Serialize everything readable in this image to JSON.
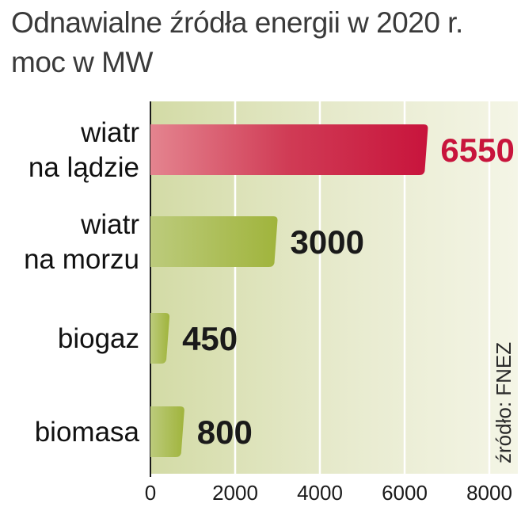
{
  "chart_data": {
    "type": "bar",
    "orientation": "horizontal",
    "title": "Odnawialne źródła energii w 2020 r.",
    "subtitle": "moc w MW",
    "categories": [
      [
        "wiatr",
        "na lądzie"
      ],
      [
        "wiatr",
        "na morzu"
      ],
      [
        "biogaz"
      ],
      [
        "biomasa"
      ]
    ],
    "values": [
      6550,
      3000,
      450,
      800
    ],
    "value_labels": [
      "6550",
      "3000",
      "450",
      "800"
    ],
    "xlim": [
      0,
      8000
    ],
    "xticks": [
      0,
      2000,
      4000,
      6000,
      8000
    ],
    "xtick_labels": [
      "0",
      "2000",
      "4000",
      "6000",
      "8000"
    ],
    "grid": true,
    "source": "źródło: FNEZ",
    "colors": {
      "highlight_bar": "#c8143c",
      "highlight_value": "#c8143c",
      "bar": "#a0b43c",
      "value": "#1a1a1a",
      "background": "#e6e9c8",
      "grid": "#ffffff"
    }
  }
}
